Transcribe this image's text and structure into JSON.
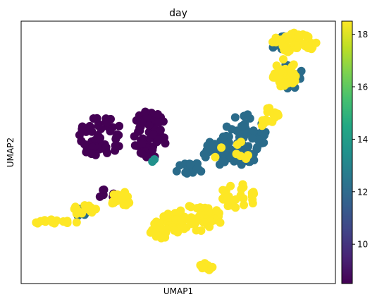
{
  "chart_data": {
    "type": "scatter",
    "title": "day",
    "xlabel": "UMAP1",
    "ylabel": "UMAP2",
    "xlim": [
      0,
      1
    ],
    "ylim": [
      0,
      1
    ],
    "colorbar": {
      "min": 8.5,
      "max": 18.5,
      "ticks": [
        "10",
        "12",
        "14",
        "16",
        "18"
      ],
      "tick_values": [
        10,
        12,
        14,
        16,
        18
      ],
      "colormap": "viridis"
    },
    "colors": {
      "day_9": "#440154",
      "day_12": "#2a6b8a",
      "day_13": "#21918c",
      "day_18": "#fde725"
    },
    "clusters": [
      {
        "day": 9,
        "count": 55,
        "cx": 0.254,
        "cy": 0.56,
        "rx": 0.07,
        "ry": 0.08
      },
      {
        "day": 9,
        "count": 60,
        "cx": 0.41,
        "cy": 0.57,
        "rx": 0.055,
        "ry": 0.09
      },
      {
        "day": 9,
        "count": 6,
        "cx": 0.27,
        "cy": 0.34,
        "rx": 0.03,
        "ry": 0.02
      },
      {
        "day": 12,
        "count": 70,
        "cx": 0.71,
        "cy": 0.55,
        "rx": 0.07,
        "ry": 0.1
      },
      {
        "day": 12,
        "count": 25,
        "cx": 0.63,
        "cy": 0.5,
        "rx": 0.05,
        "ry": 0.05
      },
      {
        "day": 12,
        "count": 18,
        "cx": 0.53,
        "cy": 0.44,
        "rx": 0.05,
        "ry": 0.025
      },
      {
        "day": 12,
        "count": 25,
        "cx": 0.86,
        "cy": 0.79,
        "rx": 0.04,
        "ry": 0.05
      },
      {
        "day": 12,
        "count": 12,
        "cx": 0.82,
        "cy": 0.92,
        "rx": 0.03,
        "ry": 0.03
      },
      {
        "day": 12,
        "count": 5,
        "cx": 0.19,
        "cy": 0.27,
        "rx": 0.02,
        "ry": 0.015
      },
      {
        "day": 18,
        "count": 55,
        "cx": 0.87,
        "cy": 0.92,
        "rx": 0.07,
        "ry": 0.04
      },
      {
        "day": 18,
        "count": 30,
        "cx": 0.84,
        "cy": 0.8,
        "rx": 0.04,
        "ry": 0.06
      },
      {
        "day": 18,
        "count": 14,
        "cx": 0.79,
        "cy": 0.63,
        "rx": 0.03,
        "ry": 0.05
      },
      {
        "day": 18,
        "count": 55,
        "cx": 0.56,
        "cy": 0.25,
        "rx": 0.09,
        "ry": 0.05
      },
      {
        "day": 18,
        "count": 35,
        "cx": 0.46,
        "cy": 0.22,
        "rx": 0.06,
        "ry": 0.05
      },
      {
        "day": 18,
        "count": 30,
        "cx": 0.69,
        "cy": 0.33,
        "rx": 0.06,
        "ry": 0.05
      },
      {
        "day": 18,
        "count": 15,
        "cx": 0.32,
        "cy": 0.32,
        "rx": 0.04,
        "ry": 0.03
      },
      {
        "day": 18,
        "count": 16,
        "cx": 0.2,
        "cy": 0.28,
        "rx": 0.04,
        "ry": 0.02
      },
      {
        "day": 18,
        "count": 16,
        "cx": 0.11,
        "cy": 0.235,
        "rx": 0.07,
        "ry": 0.01
      },
      {
        "day": 18,
        "count": 14,
        "cx": 0.59,
        "cy": 0.065,
        "rx": 0.025,
        "ry": 0.015
      },
      {
        "day": 18,
        "count": 8,
        "cx": 0.67,
        "cy": 0.5,
        "rx": 0.06,
        "ry": 0.05
      },
      {
        "day": 13,
        "count": 2,
        "cx": 0.42,
        "cy": 0.47,
        "rx": 0.01,
        "ry": 0.01
      }
    ]
  }
}
